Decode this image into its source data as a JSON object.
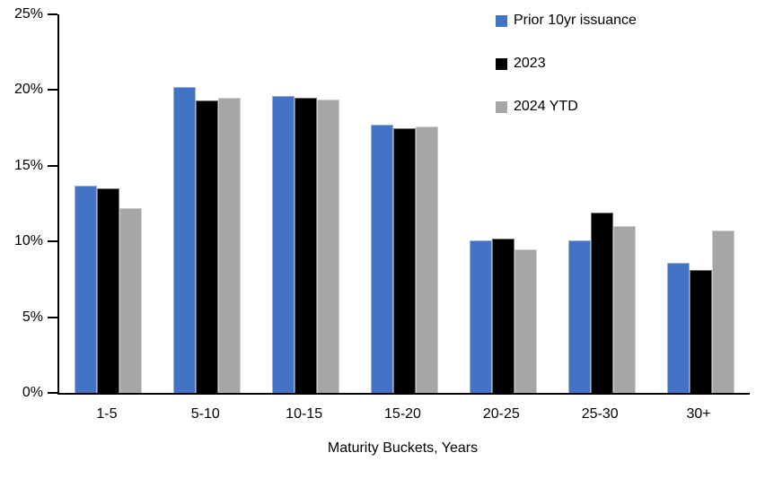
{
  "chart_data": {
    "type": "bar",
    "title": "",
    "xlabel": "Maturity Buckets, Years",
    "ylabel": "",
    "ylim": [
      0,
      25
    ],
    "grid": false,
    "legend_position": "top-right",
    "categories": [
      "1-5",
      "5-10",
      "10-15",
      "15-20",
      "20-25",
      "25-30",
      "30+"
    ],
    "yticks": [
      {
        "value": 0,
        "label": "0%"
      },
      {
        "value": 5,
        "label": "5%"
      },
      {
        "value": 10,
        "label": "10%"
      },
      {
        "value": 15,
        "label": "15%"
      },
      {
        "value": 20,
        "label": "20%"
      },
      {
        "value": 25,
        "label": "25%"
      }
    ],
    "series": [
      {
        "name": "Prior 10yr issuance",
        "color": "#4472C4",
        "values": [
          13.7,
          20.2,
          19.6,
          17.7,
          10.1,
          10.1,
          8.6
        ]
      },
      {
        "name": "2023",
        "color": "#000000",
        "values": [
          13.5,
          19.3,
          19.5,
          17.5,
          10.2,
          11.9,
          8.1
        ]
      },
      {
        "name": "2024 YTD",
        "color": "#A6A6A6",
        "values": [
          12.2,
          19.5,
          19.4,
          17.6,
          9.5,
          11.0,
          10.7
        ]
      }
    ],
    "axis_color": "#000000"
  }
}
